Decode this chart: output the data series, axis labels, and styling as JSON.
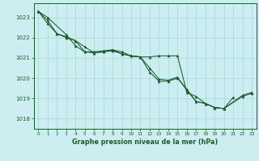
{
  "xlabel": "Graphe pression niveau de la mer (hPa)",
  "background_color": "#cceef0",
  "grid_color": "#aadde0",
  "line_color": "#1a5c2a",
  "xlim": [
    -0.5,
    23.5
  ],
  "ylim": [
    1017.5,
    1023.7
  ],
  "yticks": [
    1018,
    1019,
    1020,
    1021,
    1022,
    1023
  ],
  "xticks": [
    0,
    1,
    2,
    3,
    4,
    5,
    6,
    7,
    8,
    9,
    10,
    11,
    12,
    13,
    14,
    15,
    16,
    17,
    18,
    19,
    20,
    21,
    22,
    23
  ],
  "series": [
    {
      "x": [
        0,
        1,
        2,
        3,
        4,
        5,
        6,
        7,
        8,
        9,
        10,
        11,
        12,
        13,
        14,
        15,
        16,
        17,
        18,
        19,
        20,
        21
      ],
      "y": [
        1023.3,
        1022.85,
        1022.2,
        1022.0,
        1021.85,
        1021.3,
        1021.25,
        1021.3,
        1021.35,
        1021.2,
        1021.1,
        1021.05,
        1021.05,
        1021.1,
        1021.1,
        1021.1,
        1019.3,
        1019.1,
        1018.75,
        1018.55,
        1018.5,
        1019.05
      ]
    },
    {
      "x": [
        0,
        1,
        2,
        3,
        4,
        5,
        6,
        7,
        8,
        9,
        10,
        11,
        12,
        13,
        14,
        15,
        16,
        17,
        18,
        19,
        20,
        22,
        23
      ],
      "y": [
        1023.3,
        1022.7,
        1022.2,
        1022.05,
        1021.85,
        1021.55,
        1021.25,
        1021.3,
        1021.4,
        1021.2,
        1021.1,
        1021.05,
        1020.5,
        1019.95,
        1019.9,
        1020.05,
        1019.4,
        1018.85,
        1018.75,
        1018.55,
        1018.5,
        1019.1,
        1019.25
      ]
    },
    {
      "x": [
        0,
        1,
        3,
        4,
        5,
        6,
        7,
        8,
        9,
        10,
        11,
        12,
        13,
        14,
        15,
        16,
        17,
        18,
        19,
        20,
        22,
        23
      ],
      "y": [
        1023.3,
        1023.0,
        1022.15,
        1021.6,
        1021.3,
        1021.3,
        1021.35,
        1021.4,
        1021.3,
        1021.1,
        1021.05,
        1020.3,
        1019.85,
        1019.85,
        1020.0,
        1019.45,
        1018.85,
        1018.75,
        1018.55,
        1018.5,
        1019.15,
        1019.3
      ]
    }
  ]
}
